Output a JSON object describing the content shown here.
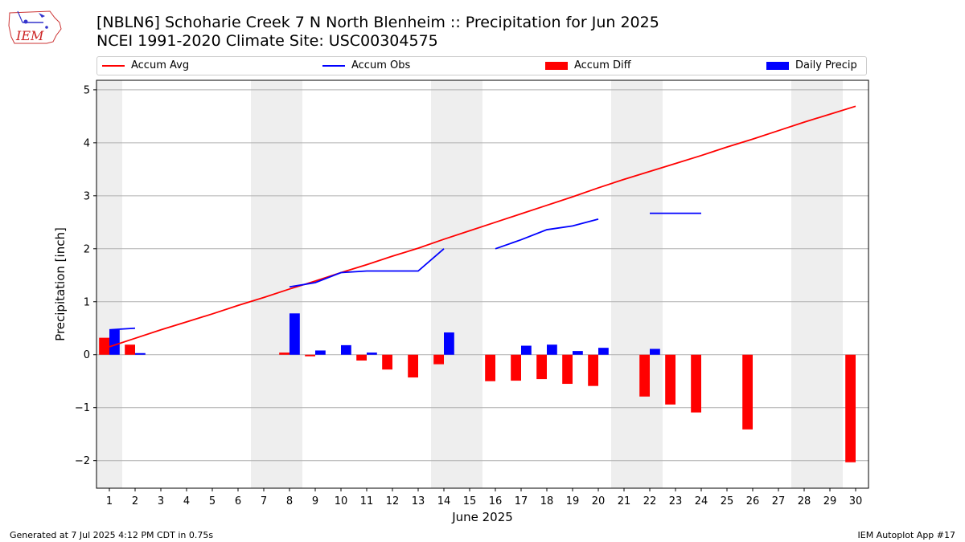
{
  "header": {
    "title_line1": "[NBLN6] Schoharie Creek 7 N North Blenheim :: Precipitation for Jun 2025",
    "title_line2": "NCEI 1991-2020 Climate Site: USC00304575",
    "logo_text": "IEM"
  },
  "footer": {
    "generated": "Generated at 7 Jul 2025 4:12 PM CDT in 0.75s",
    "app": "IEM Autoplot App #17"
  },
  "legend": [
    {
      "label": "Accum Avg",
      "kind": "line",
      "color": "#ff0000"
    },
    {
      "label": "Accum Obs",
      "kind": "line",
      "color": "#0000ff"
    },
    {
      "label": "Accum Diff",
      "kind": "bar",
      "color": "#ff0000"
    },
    {
      "label": "Daily Precip",
      "kind": "bar",
      "color": "#0000ff"
    }
  ],
  "chart_data": {
    "type": "bar",
    "xlabel": "June 2025",
    "ylabel": "Precipitation [inch]",
    "xlim": [
      0.5,
      30.5
    ],
    "ylim": [
      -2.52,
      5.18
    ],
    "x_ticks": [
      1,
      2,
      3,
      4,
      5,
      6,
      7,
      8,
      9,
      10,
      11,
      12,
      13,
      14,
      15,
      16,
      17,
      18,
      19,
      20,
      21,
      22,
      23,
      24,
      25,
      26,
      27,
      28,
      29,
      30
    ],
    "y_ticks": [
      -2,
      -1,
      0,
      1,
      2,
      3,
      4,
      5
    ],
    "y_tick_labels": [
      "−2",
      "−1",
      "0",
      "1",
      "2",
      "3",
      "4",
      "5"
    ],
    "grid": "horizontal",
    "legend_position": "top",
    "weekend_shading": [
      [
        0.5,
        1.5
      ],
      [
        6.5,
        8.5
      ],
      [
        13.5,
        15.5
      ],
      [
        20.5,
        22.5
      ],
      [
        27.5,
        29.5
      ]
    ],
    "series": [
      {
        "name": "Accum Avg",
        "type": "line",
        "color": "#ff0000",
        "x": [
          1,
          2,
          3,
          4,
          5,
          6,
          7,
          8,
          9,
          10,
          11,
          12,
          13,
          14,
          15,
          16,
          17,
          18,
          19,
          20,
          21,
          22,
          23,
          24,
          25,
          26,
          27,
          28,
          29,
          30
        ],
        "values": [
          0.15,
          0.31,
          0.47,
          0.62,
          0.77,
          0.93,
          1.08,
          1.24,
          1.39,
          1.55,
          1.7,
          1.86,
          2.01,
          2.18,
          2.34,
          2.5,
          2.66,
          2.82,
          2.98,
          3.15,
          3.31,
          3.46,
          3.61,
          3.76,
          3.92,
          4.07,
          4.23,
          4.39,
          4.54,
          4.69
        ]
      },
      {
        "name": "Accum Obs",
        "type": "line",
        "color": "#0000ff",
        "segments": [
          {
            "x": [
              1,
              2
            ],
            "values": [
              0.47,
              0.5
            ]
          },
          {
            "x": [
              8,
              9,
              10,
              11,
              12,
              13,
              14
            ],
            "values": [
              1.28,
              1.36,
              1.55,
              1.58,
              1.58,
              1.58,
              2.0
            ]
          },
          {
            "x": [
              16,
              17,
              18,
              19,
              20
            ],
            "values": [
              2.0,
              2.17,
              2.36,
              2.43,
              2.56
            ]
          },
          {
            "x": [
              22,
              23,
              24
            ],
            "values": [
              2.67,
              2.67,
              2.67
            ]
          }
        ]
      },
      {
        "name": "Accum Diff",
        "type": "bar",
        "color": "#ff0000",
        "x": [
          1,
          2,
          8,
          9,
          10,
          11,
          12,
          13,
          14,
          16,
          17,
          18,
          19,
          20,
          22,
          23,
          24,
          26,
          30
        ],
        "values": [
          0.32,
          0.19,
          0.04,
          -0.03,
          0.0,
          -0.11,
          -0.28,
          -0.43,
          -0.18,
          -0.5,
          -0.49,
          -0.46,
          -0.55,
          -0.59,
          -0.79,
          -0.94,
          -1.09,
          -1.41,
          -2.03
        ]
      },
      {
        "name": "Daily Precip",
        "type": "bar",
        "color": "#0000ff",
        "x": [
          1,
          2,
          8,
          9,
          10,
          11,
          14,
          17,
          18,
          19,
          20,
          22
        ],
        "values": [
          0.47,
          0.03,
          0.78,
          0.08,
          0.18,
          0.04,
          0.42,
          0.17,
          0.19,
          0.07,
          0.13,
          0.11
        ]
      }
    ]
  }
}
